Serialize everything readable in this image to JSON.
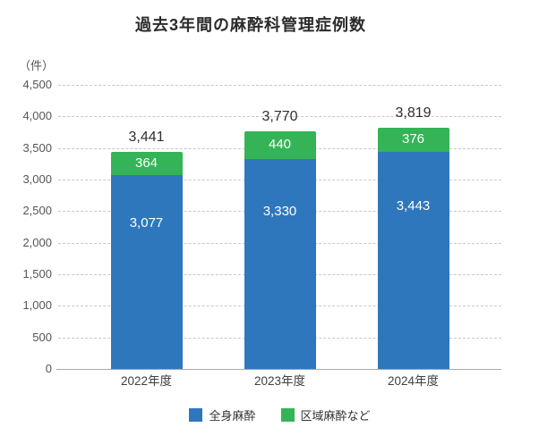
{
  "title": "過去3年間の麻酔科管理症例数",
  "unit_label": "（件）",
  "chart_data": {
    "type": "bar",
    "stacked": true,
    "title": "過去3年間の麻酔科管理症例数",
    "ylabel": "（件）",
    "xlabel": "",
    "categories": [
      "2022年度",
      "2023年度",
      "2024年度"
    ],
    "series": [
      {
        "name": "全身麻酔",
        "color": "#2e77bd",
        "values": [
          3077,
          3330,
          3443
        ]
      },
      {
        "name": "区域麻酔など",
        "color": "#34b457",
        "values": [
          364,
          440,
          376
        ]
      }
    ],
    "totals": [
      3441,
      3770,
      3819
    ],
    "ylim": [
      0,
      4500
    ],
    "ytick_step": 500,
    "ytick_labels": [
      "0",
      "500",
      "1,000",
      "1,500",
      "2,000",
      "2,500",
      "3,000",
      "3,500",
      "4,000",
      "4,500"
    ],
    "grid": "horizontal-dashed",
    "legend_position": "bottom"
  }
}
